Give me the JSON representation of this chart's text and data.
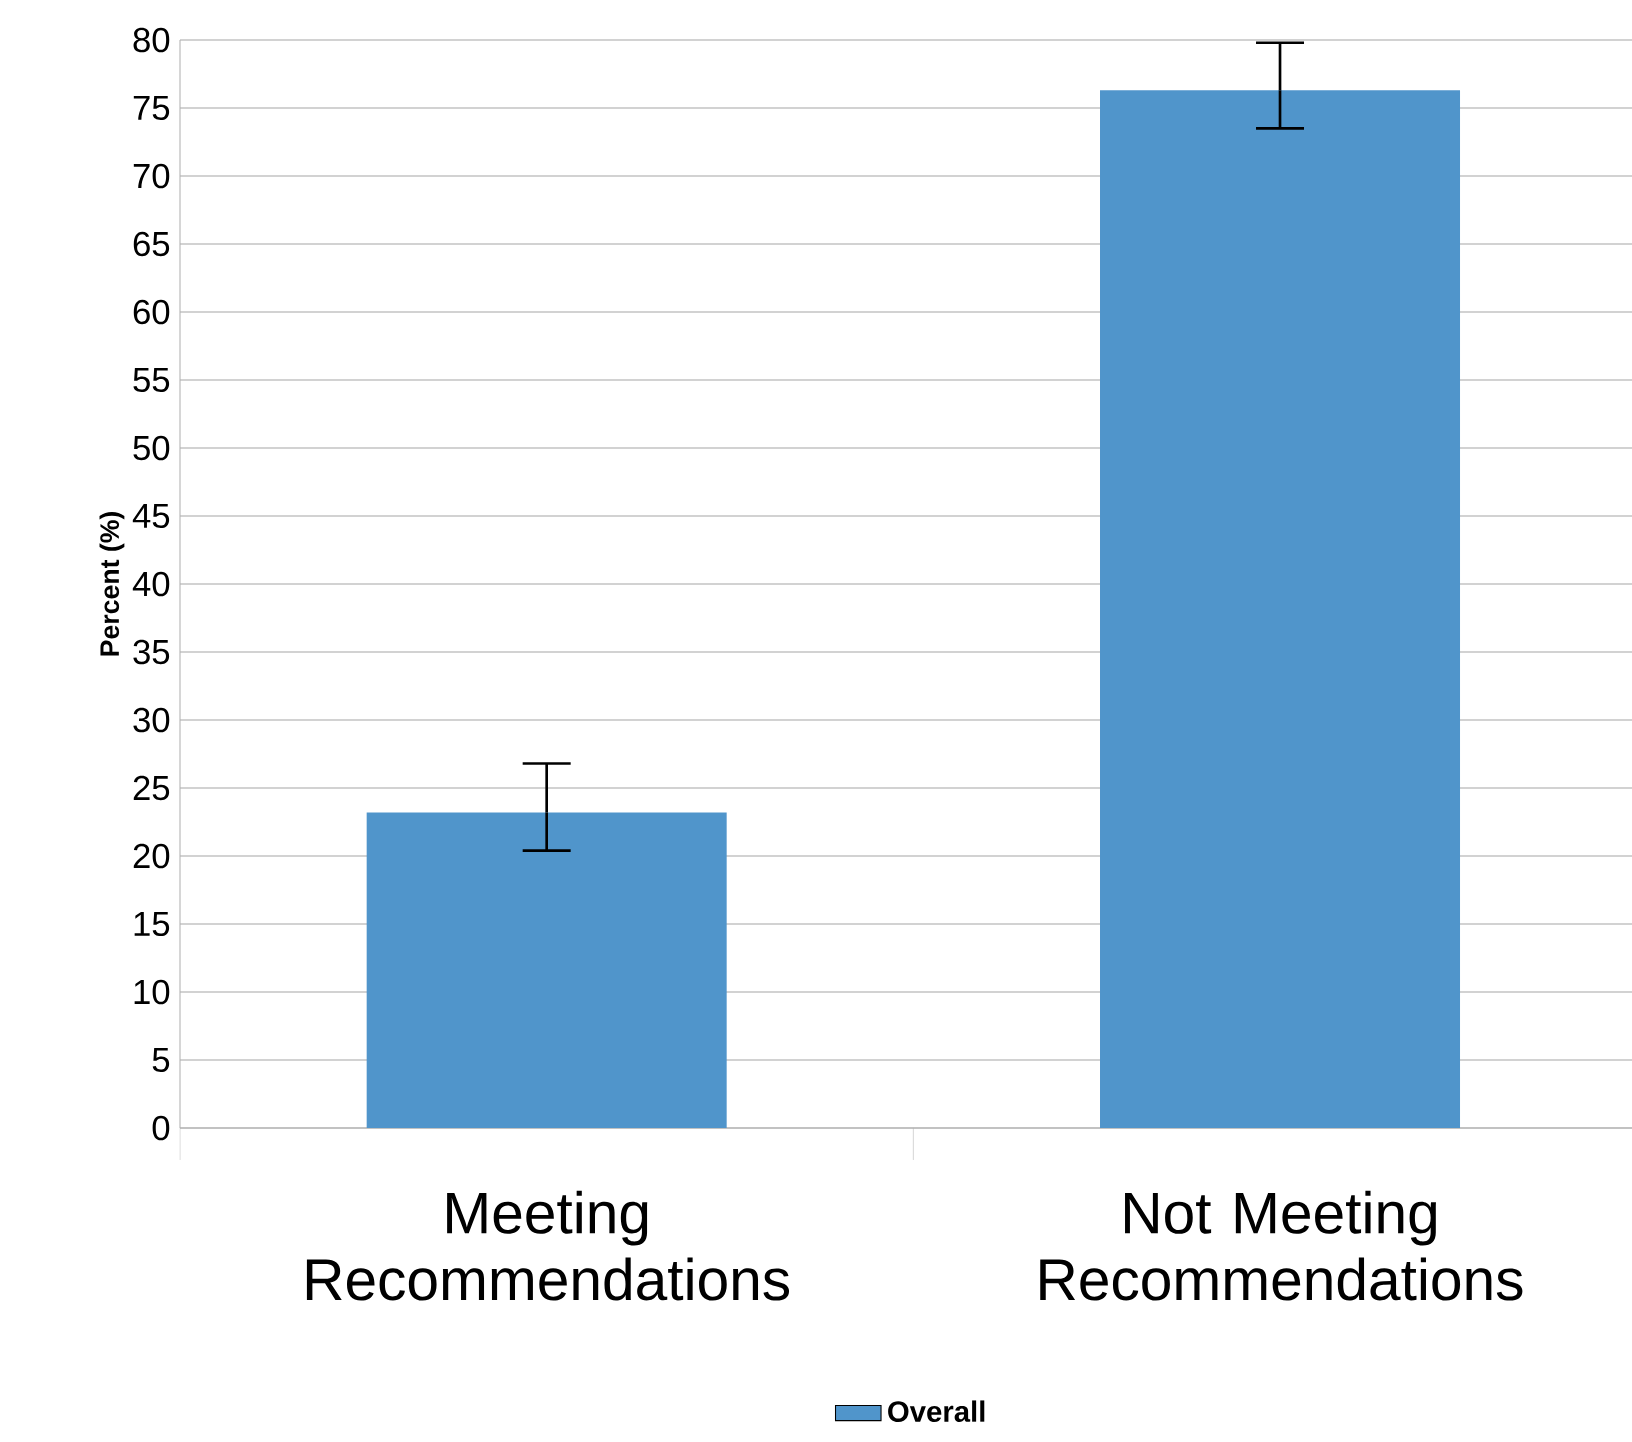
{
  "chart_data": {
    "type": "bar",
    "ylabel": "Percent (%)",
    "categories": [
      "Meeting Recommendations",
      "Not Meeting Recommendations"
    ],
    "series": [
      {
        "name": "Overall",
        "color": "#5095cb",
        "values": [
          23.2,
          76.3
        ],
        "errors": [
          [
            20.4,
            26.8
          ],
          [
            73.5,
            79.8
          ]
        ]
      }
    ],
    "ylim": [
      0,
      80
    ],
    "yticks": [
      0,
      5,
      10,
      15,
      20,
      25,
      30,
      35,
      40,
      45,
      50,
      55,
      60,
      65,
      70,
      75,
      80
    ],
    "grid": "y",
    "legend": "bottom"
  }
}
